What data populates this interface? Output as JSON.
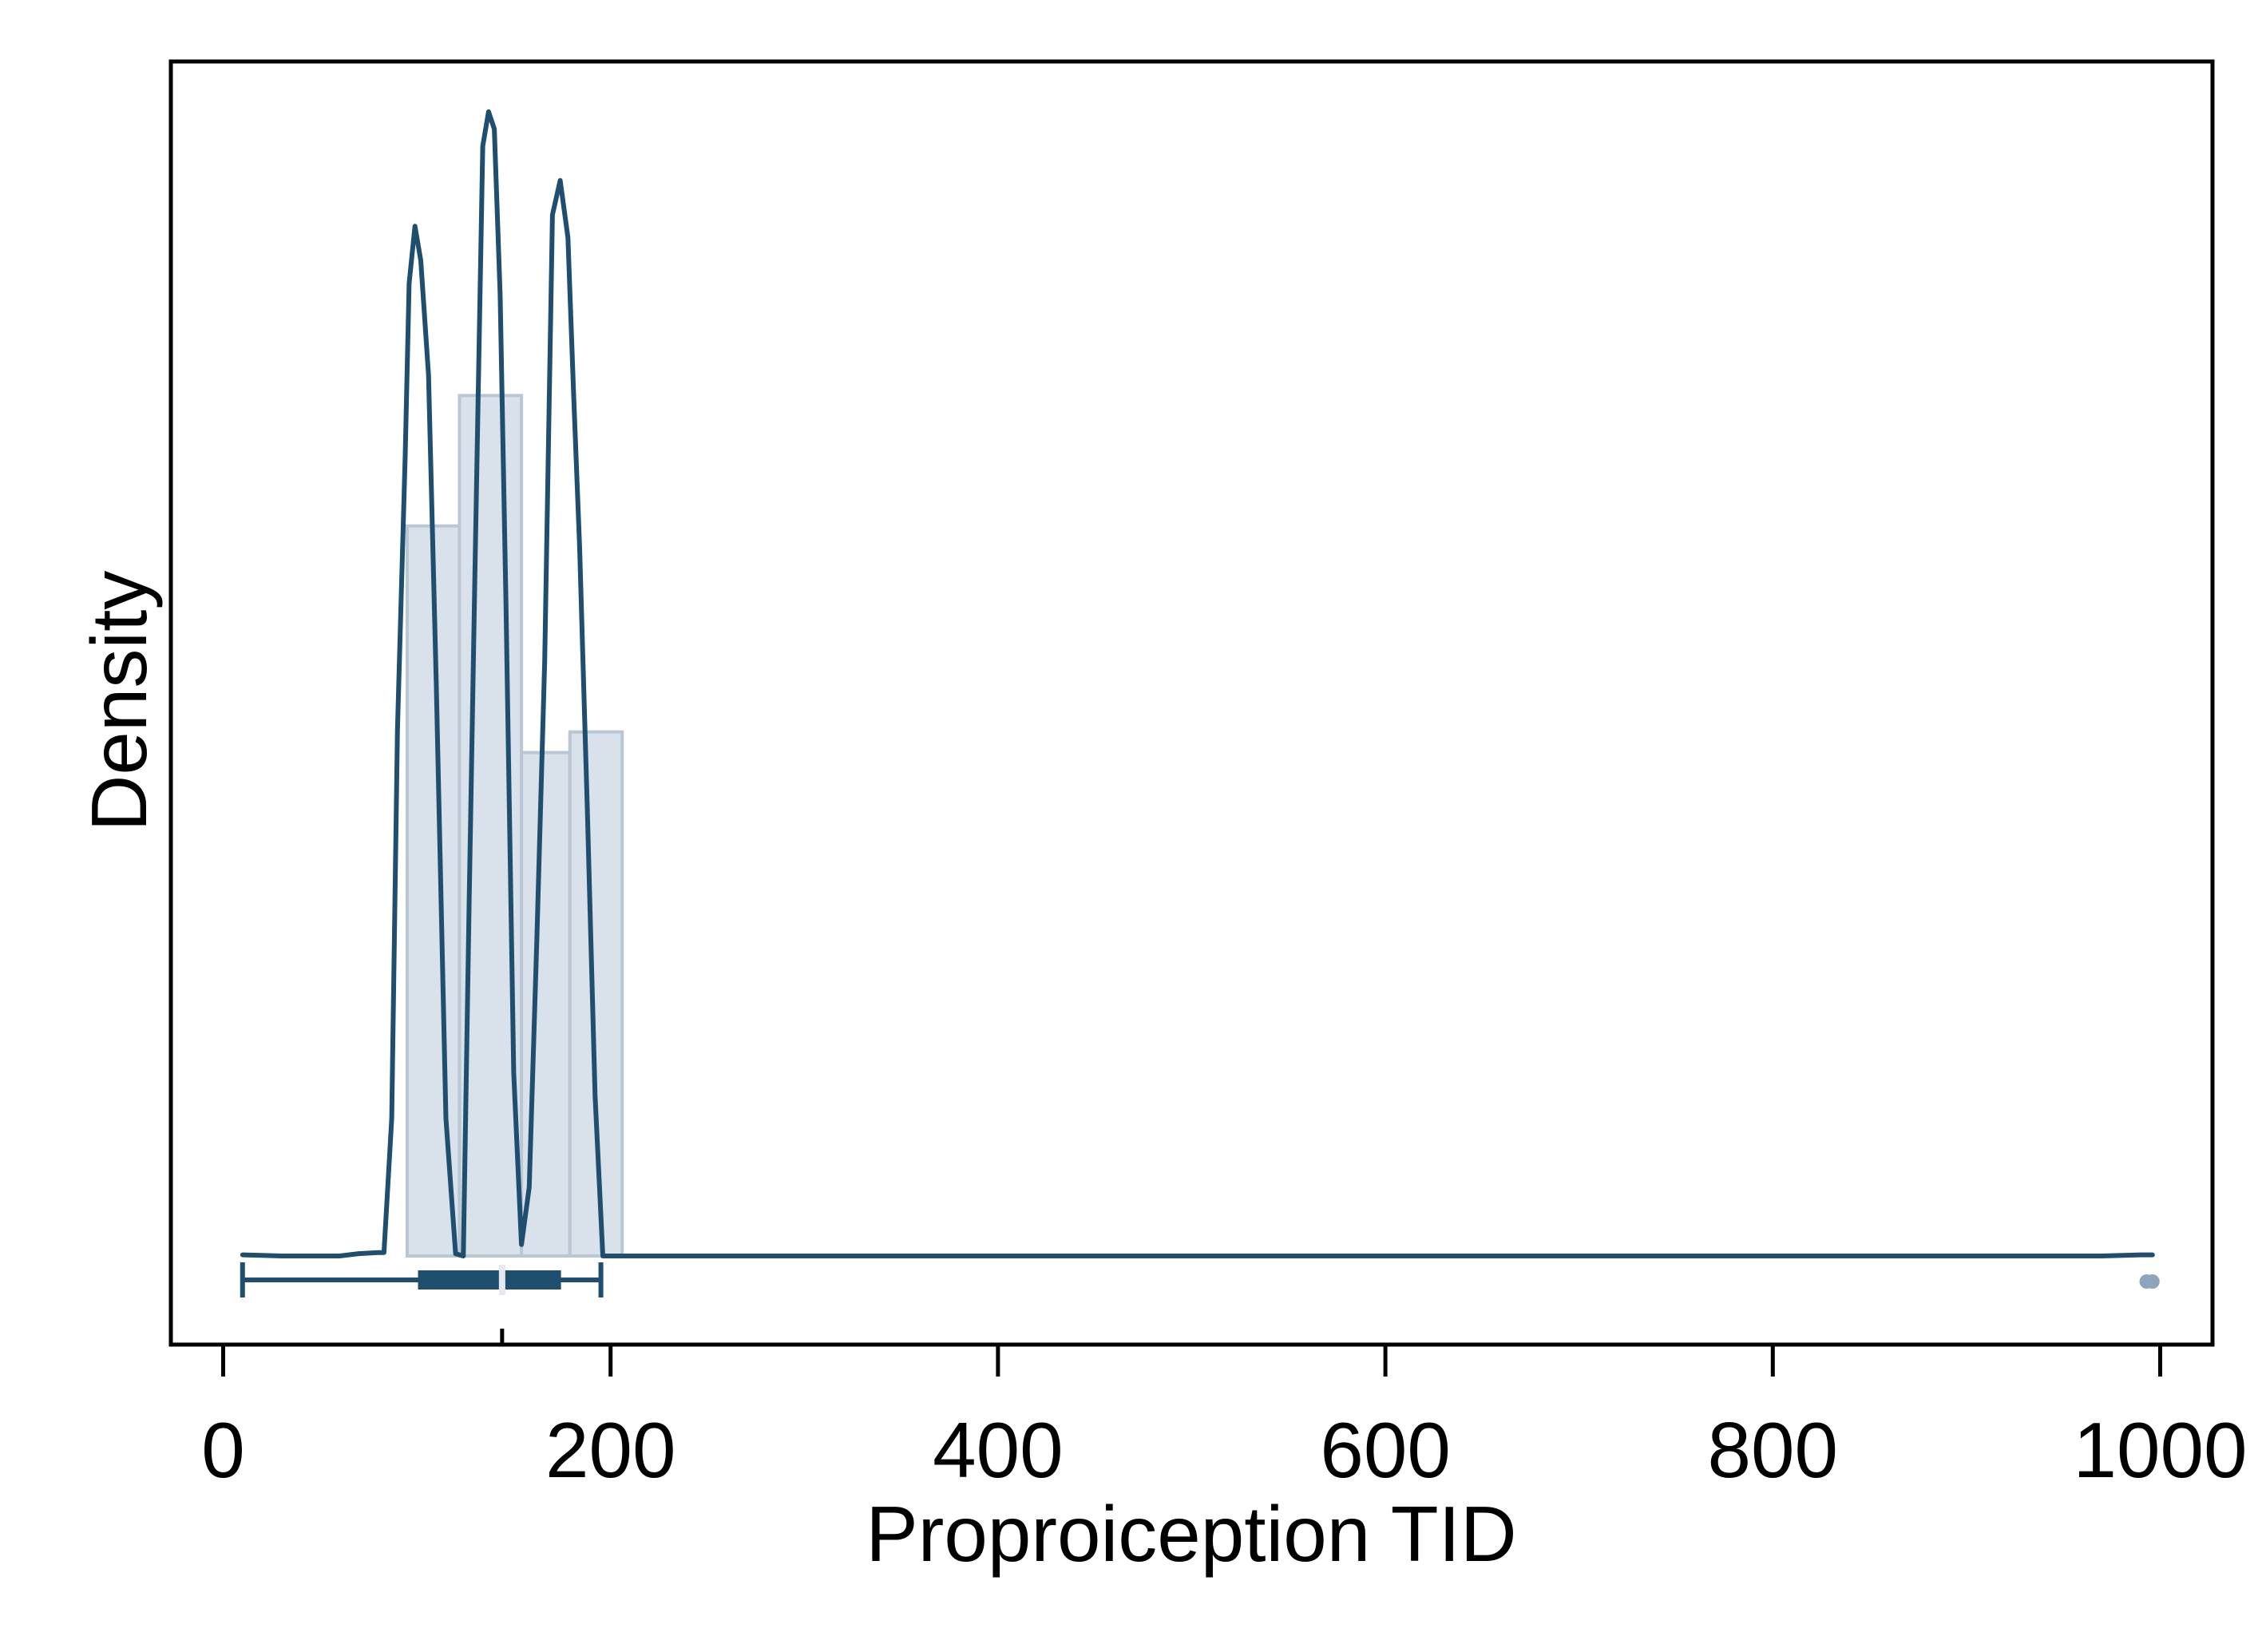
{
  "chart_data": {
    "type": "histogram",
    "xlabel": "Proproiception TID",
    "ylabel": "Density",
    "xlim": [
      -27,
      1027
    ],
    "ylim": [
      0,
      1
    ],
    "xticks": [
      0,
      200,
      400,
      600,
      800,
      1000
    ],
    "xtick_labels": [
      "0",
      "200",
      "400",
      "600",
      "800",
      "1000"
    ],
    "grid": false,
    "legend": "none",
    "histogram": {
      "bins": [
        {
          "x0": 95,
          "x1": 122,
          "density": 0.638
        },
        {
          "x0": 122,
          "x1": 154,
          "density": 0.752
        },
        {
          "x0": 154,
          "x1": 179,
          "density": 0.44
        },
        {
          "x0": 179,
          "x1": 206,
          "density": 0.458
        }
      ]
    },
    "density_curve": {
      "x": [
        10,
        20,
        30,
        40,
        50,
        60,
        70,
        80,
        83,
        87,
        90,
        94,
        96,
        99,
        102,
        106,
        110,
        115,
        120,
        124,
        127,
        130,
        134,
        137,
        140,
        143,
        146,
        150,
        154,
        158,
        162,
        166,
        170,
        174,
        178,
        181,
        184,
        188,
        192,
        196,
        200,
        204,
        207,
        212,
        220,
        300,
        400,
        500,
        600,
        700,
        800,
        900,
        970,
        990,
        996
      ],
      "y": [
        0.001,
        0.0005,
        0.0,
        0.0,
        0.0,
        0.0,
        0.002,
        0.003,
        0.003,
        0.12,
        0.46,
        0.7,
        0.85,
        0.9,
        0.87,
        0.77,
        0.5,
        0.12,
        0.002,
        0.0,
        0.31,
        0.6,
        0.97,
        1.0,
        0.985,
        0.84,
        0.57,
        0.16,
        0.01,
        0.06,
        0.28,
        0.52,
        0.91,
        0.94,
        0.89,
        0.75,
        0.62,
        0.39,
        0.14,
        0.0,
        0.0,
        0.0,
        0.0,
        0.0,
        0.0,
        0.0,
        0.0,
        0.0,
        0.0,
        0.0,
        0.0,
        0.0,
        0.0,
        0.001,
        0.001
      ]
    },
    "boxplot": {
      "whisker_low": 10,
      "q1": 101,
      "median": 144,
      "q3": 174,
      "whisker_high": 195,
      "outliers": [
        993,
        996
      ]
    },
    "colors": {
      "line": "#1f4e6e",
      "hist_fill": "#d9e1ea",
      "hist_edge": "#b9c7d5",
      "box": "#1f4e6e",
      "median": "#e6eaf0",
      "outlier": "#8ea4bb",
      "axis": "#000000"
    }
  }
}
